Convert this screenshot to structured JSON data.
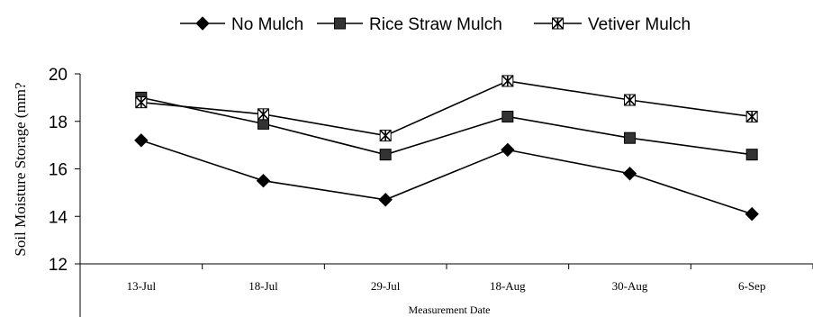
{
  "chart_data": {
    "type": "line",
    "title": "",
    "xlabel": "Measurement Date",
    "ylabel": "Soil Moisture Storage  (mm?",
    "categories": [
      "13-Jul",
      "18-Jul",
      "29-Jul",
      "18-Aug",
      "30-Aug",
      "6-Sep"
    ],
    "ylim": [
      12,
      20
    ],
    "yticks": [
      "12",
      "14",
      "16",
      "18",
      "20"
    ],
    "grid": false,
    "legend_position": "top",
    "series": [
      {
        "name": "No Mulch",
        "marker": "diamond",
        "values": [
          17.2,
          15.5,
          14.7,
          16.8,
          15.8,
          14.1
        ]
      },
      {
        "name": "Rice Straw Mulch",
        "marker": "square",
        "values": [
          19.0,
          17.9,
          16.6,
          18.2,
          17.3,
          16.6
        ]
      },
      {
        "name": "Vetiver Mulch",
        "marker": "asterisk-square",
        "values": [
          18.8,
          18.3,
          17.4,
          19.7,
          18.9,
          18.2
        ]
      }
    ],
    "colors": {
      "line": "#000000",
      "marker_fill": "#000000",
      "square_fill": "#333333",
      "asterisk_fill": "#ffffff"
    }
  }
}
